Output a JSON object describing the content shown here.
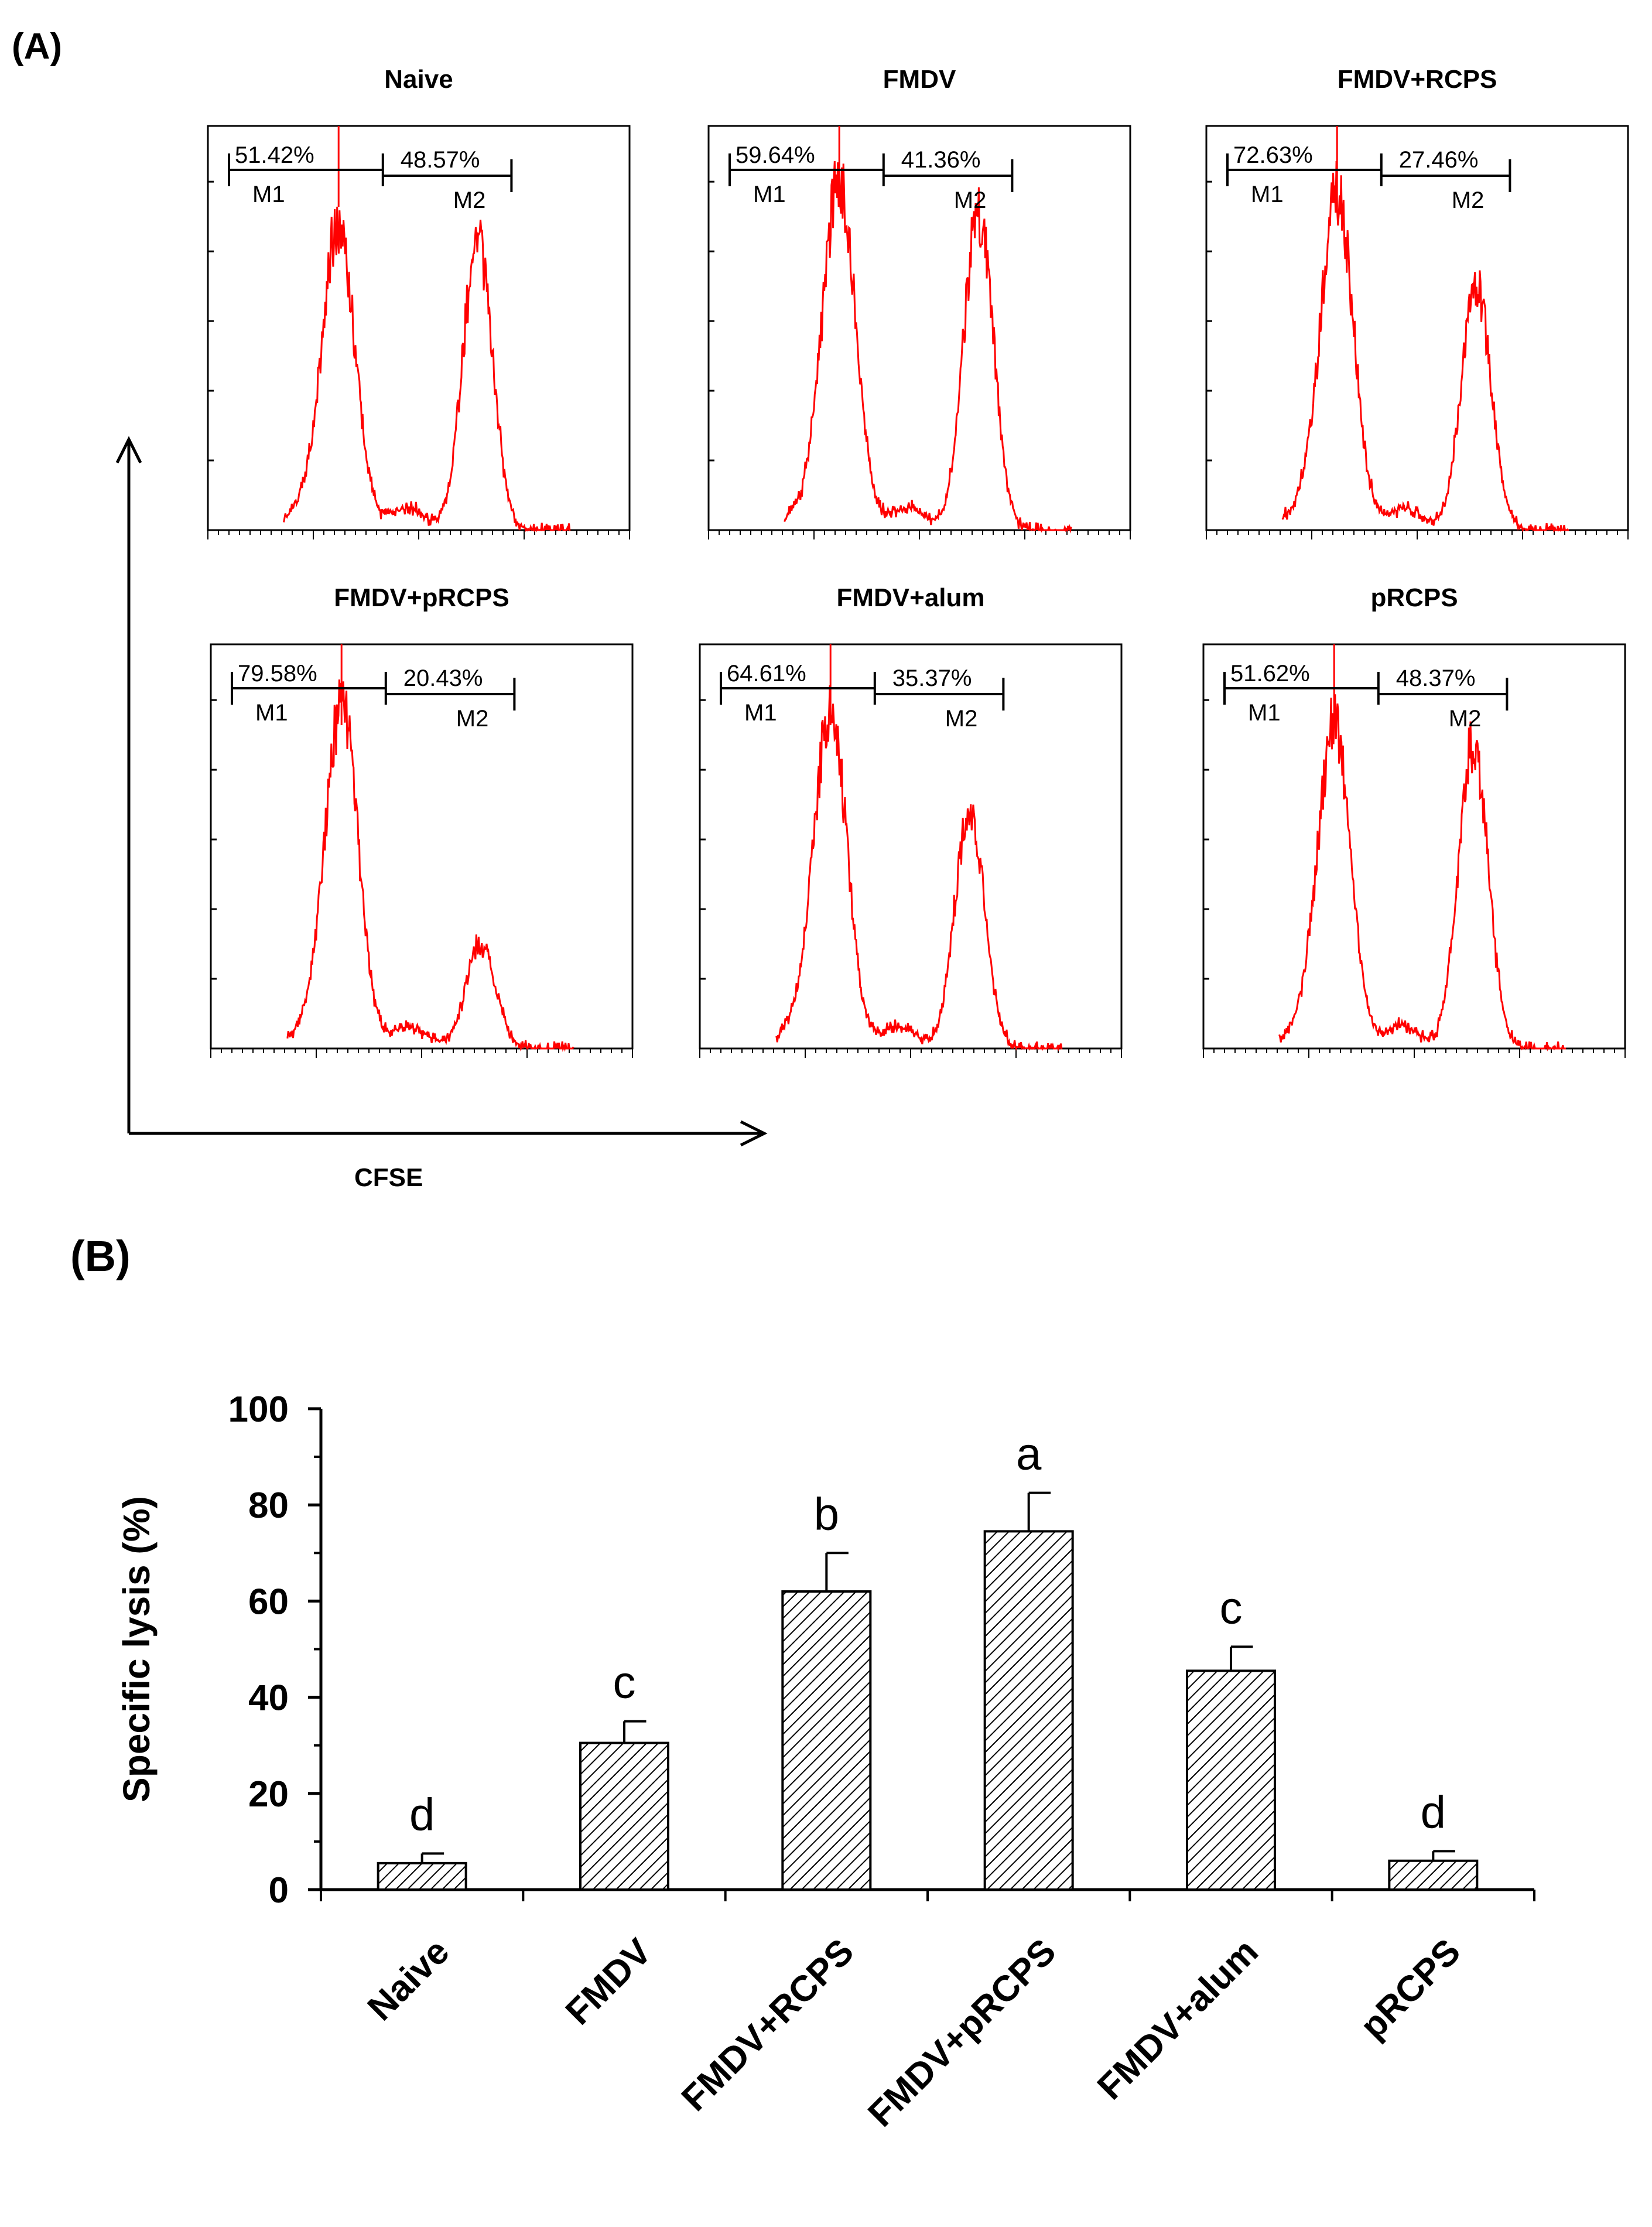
{
  "panel_a": {
    "label": "(A)",
    "x_axis_label": "CFSE",
    "histograms": [
      {
        "title": "Naive",
        "m1_percent": "51.42%",
        "m2_percent": "48.57%",
        "m1_label": "M1",
        "m2_label": "M2"
      },
      {
        "title": "FMDV",
        "m1_percent": "59.64%",
        "m2_percent": "41.36%",
        "m1_label": "M1",
        "m2_label": "M2"
      },
      {
        "title": "FMDV+RCPS",
        "m1_percent": "72.63%",
        "m2_percent": "27.46%",
        "m1_label": "M1",
        "m2_label": "M2"
      },
      {
        "title": "FMDV+pRCPS",
        "m1_percent": "79.58%",
        "m2_percent": "20.43%",
        "m1_label": "M1",
        "m2_label": "M2"
      },
      {
        "title": "FMDV+alum",
        "m1_percent": "64.61%",
        "m2_percent": "35.37%",
        "m1_label": "M1",
        "m2_label": "M2"
      },
      {
        "title": "pRCPS",
        "m1_percent": "51.62%",
        "m2_percent": "48.37%",
        "m1_label": "M1",
        "m2_label": "M2"
      }
    ]
  },
  "panel_b": {
    "label": "(B)"
  },
  "chart_data": [
    {
      "type": "histogram",
      "panel": "A",
      "xlabel": "CFSE",
      "series_color": "#ff0000",
      "series": [
        {
          "name": "Naive",
          "M1": 51.42,
          "M2": 48.57,
          "peak1_rel_height": 0.83,
          "peak2_rel_height": 0.78
        },
        {
          "name": "FMDV",
          "M1": 59.64,
          "M2": 41.36,
          "peak1_rel_height": 0.95,
          "peak2_rel_height": 0.86
        },
        {
          "name": "FMDV+RCPS",
          "M1": 72.63,
          "M2": 27.46,
          "peak1_rel_height": 0.92,
          "peak2_rel_height": 0.66
        },
        {
          "name": "FMDV+pRCPS",
          "M1": 79.58,
          "M2": 20.43,
          "peak1_rel_height": 0.94,
          "peak2_rel_height": 0.28
        },
        {
          "name": "FMDV+alum",
          "M1": 64.61,
          "M2": 35.37,
          "peak1_rel_height": 0.92,
          "peak2_rel_height": 0.64
        },
        {
          "name": "pRCPS",
          "M1": 51.62,
          "M2": 48.37,
          "peak1_rel_height": 0.88,
          "peak2_rel_height": 0.84
        }
      ]
    },
    {
      "type": "bar",
      "panel": "B",
      "categories": [
        "Naive",
        "FMDV",
        "FMDV+RCPS",
        "FMDV+pRCPS",
        "FMDV+alum",
        "pRCPS"
      ],
      "values": [
        5.5,
        30.5,
        62,
        74.5,
        45.5,
        6
      ],
      "errors": [
        2,
        4.5,
        8,
        8,
        5,
        2
      ],
      "significance": [
        "d",
        "c",
        "b",
        "a",
        "c",
        "d"
      ],
      "ylabel": "Specific lysis (%)",
      "xlabel": "",
      "ylim": [
        0,
        100
      ],
      "yticks": [
        "0",
        "20",
        "40",
        "60",
        "80",
        "100"
      ],
      "bar_pattern": "diagonal-hatch"
    }
  ]
}
